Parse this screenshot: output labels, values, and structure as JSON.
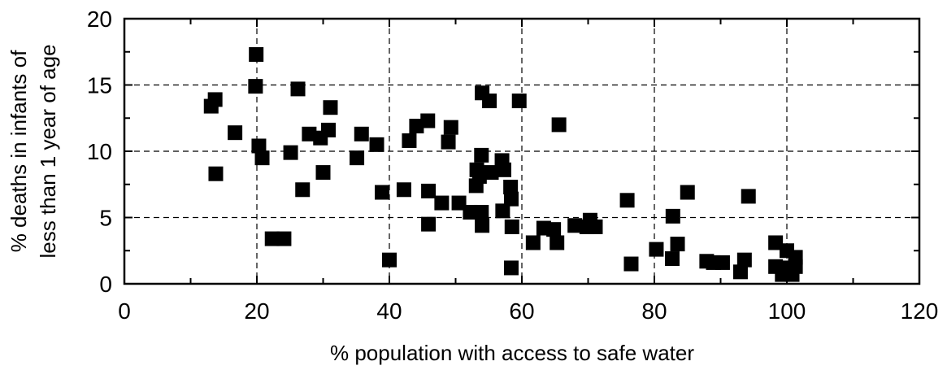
{
  "chart_data": {
    "type": "scatter",
    "xlabel": "% population with access to safe water",
    "ylabel_lines": [
      "% deaths in infants of",
      "less than 1 year of age"
    ],
    "xlim": [
      0,
      120
    ],
    "ylim": [
      0,
      20
    ],
    "x_ticks": [
      0,
      20,
      40,
      60,
      80,
      100,
      120
    ],
    "y_ticks": [
      0,
      5,
      10,
      15,
      20
    ],
    "x_tick_labels": [
      "0",
      "20",
      "40",
      "60",
      "80",
      "100",
      "120"
    ],
    "y_tick_labels": [
      "0",
      "5",
      "10",
      "15",
      "20"
    ],
    "grid": true,
    "marker": "square",
    "marker_color": "#000000",
    "points": [
      [
        13.1,
        13.4
      ],
      [
        13.7,
        13.9
      ],
      [
        13.8,
        8.3
      ],
      [
        16.7,
        11.4
      ],
      [
        19.9,
        17.3
      ],
      [
        19.8,
        14.9
      ],
      [
        20.3,
        10.4
      ],
      [
        20.8,
        9.5
      ],
      [
        22.3,
        3.4
      ],
      [
        24.1,
        3.4
      ],
      [
        25.1,
        9.9
      ],
      [
        26.2,
        14.7
      ],
      [
        26.9,
        7.1
      ],
      [
        27.9,
        11.3
      ],
      [
        29.6,
        11.0
      ],
      [
        30.0,
        8.4
      ],
      [
        30.8,
        11.6
      ],
      [
        31.1,
        13.3
      ],
      [
        35.1,
        9.5
      ],
      [
        35.8,
        11.3
      ],
      [
        38.1,
        10.5
      ],
      [
        38.9,
        6.9
      ],
      [
        40.0,
        1.8
      ],
      [
        42.2,
        7.1
      ],
      [
        43.0,
        10.8
      ],
      [
        44.1,
        11.9
      ],
      [
        45.8,
        12.3
      ],
      [
        45.9,
        7.0
      ],
      [
        45.9,
        4.5
      ],
      [
        47.9,
        6.1
      ],
      [
        48.9,
        10.7
      ],
      [
        49.3,
        11.8
      ],
      [
        50.5,
        6.1
      ],
      [
        52.2,
        5.4
      ],
      [
        53.2,
        8.6
      ],
      [
        53.1,
        7.4
      ],
      [
        53.6,
        8.1
      ],
      [
        53.9,
        9.7
      ],
      [
        53.9,
        5.4
      ],
      [
        54.0,
        4.4
      ],
      [
        54.0,
        14.4
      ],
      [
        55.1,
        13.8
      ],
      [
        55.4,
        8.4
      ],
      [
        57.0,
        9.3
      ],
      [
        57.3,
        8.6
      ],
      [
        57.1,
        5.5
      ],
      [
        58.3,
        7.3
      ],
      [
        58.4,
        6.4
      ],
      [
        58.5,
        4.3
      ],
      [
        58.4,
        1.2
      ],
      [
        59.6,
        13.8
      ],
      [
        61.7,
        3.1
      ],
      [
        63.3,
        4.2
      ],
      [
        64.8,
        4.1
      ],
      [
        65.3,
        3.1
      ],
      [
        65.6,
        12.0
      ],
      [
        68.0,
        4.4
      ],
      [
        69.8,
        4.3
      ],
      [
        70.3,
        4.8
      ],
      [
        71.1,
        4.3
      ],
      [
        75.9,
        6.3
      ],
      [
        76.5,
        1.5
      ],
      [
        80.3,
        2.6
      ],
      [
        82.7,
        1.9
      ],
      [
        82.8,
        5.1
      ],
      [
        83.5,
        3.0
      ],
      [
        85.0,
        6.9
      ],
      [
        87.9,
        1.7
      ],
      [
        88.9,
        1.6
      ],
      [
        90.3,
        1.6
      ],
      [
        93.0,
        0.9
      ],
      [
        93.6,
        1.8
      ],
      [
        94.2,
        6.6
      ],
      [
        98.3,
        3.1
      ],
      [
        98.3,
        1.3
      ],
      [
        99.3,
        0.7
      ],
      [
        100.0,
        2.5
      ],
      [
        100.1,
        1.2
      ],
      [
        100.8,
        0.7
      ],
      [
        101.3,
        2.0
      ],
      [
        101.3,
        1.3
      ]
    ]
  }
}
